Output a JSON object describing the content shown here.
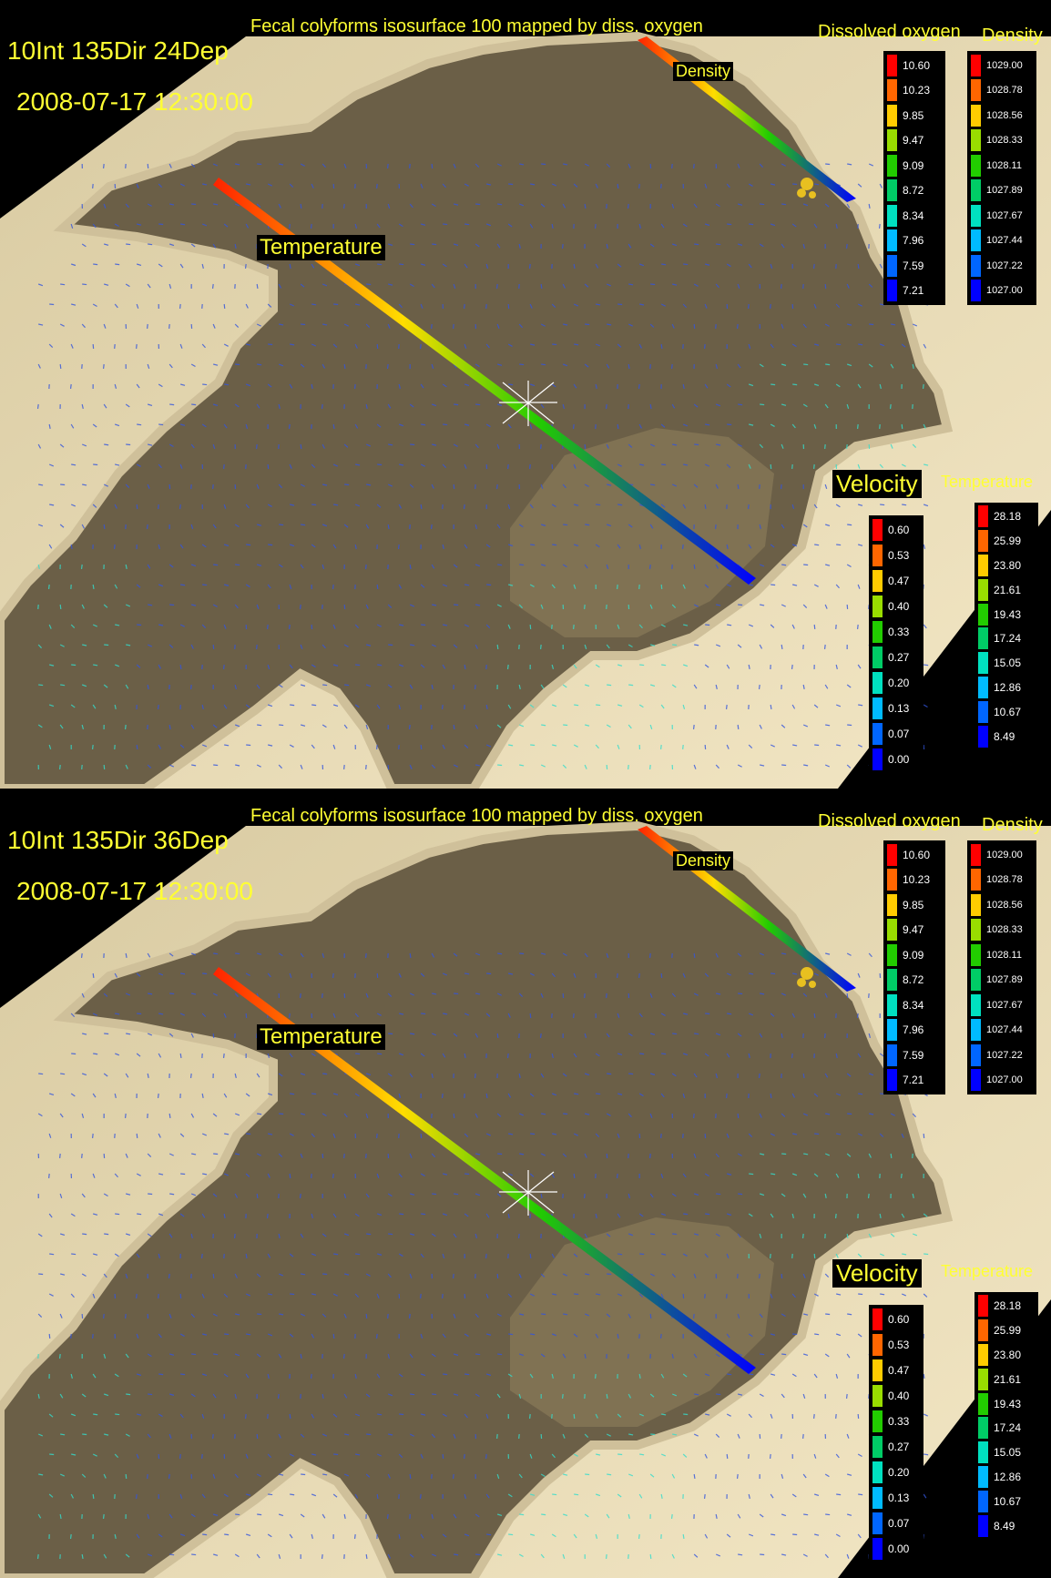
{
  "panels": [
    {
      "title": "Fecal colyforms isosurface 100 mapped by diss. oxygen",
      "run_label": "10Int 135Dir 24Dep",
      "timestamp": "2008-07-17 12:30:00",
      "labels": {
        "temperature": "Temperature",
        "density": "Density"
      },
      "legends": {
        "dissolved_oxygen": {
          "title": "Dissolved oxygen",
          "values": [
            "10.60",
            "10.23",
            "9.85",
            "9.47",
            "9.09",
            "8.72",
            "8.34",
            "7.96",
            "7.59",
            "7.21"
          ]
        },
        "density": {
          "title": "Density",
          "values": [
            "1029.00",
            "1028.78",
            "1028.56",
            "1028.33",
            "1028.11",
            "1027.89",
            "1027.67",
            "1027.44",
            "1027.22",
            "1027.00"
          ]
        },
        "velocity": {
          "title": "Velocity",
          "values": [
            "0.60",
            "0.53",
            "0.47",
            "0.40",
            "0.33",
            "0.27",
            "0.20",
            "0.13",
            "0.07",
            "0.00"
          ]
        },
        "temperature": {
          "title": "Temperature",
          "values": [
            "28.18",
            "25.99",
            "23.80",
            "21.61",
            "19.43",
            "17.24",
            "15.05",
            "12.86",
            "10.67",
            "8.49"
          ]
        }
      }
    },
    {
      "title": "Fecal colyforms isosurface 100 mapped by diss. oxygen",
      "run_label": "10Int 135Dir 36Dep",
      "timestamp": "2008-07-17 12:30:00",
      "labels": {
        "temperature": "Temperature",
        "density": "Density"
      },
      "legends": {
        "dissolved_oxygen": {
          "title": "Dissolved oxygen",
          "values": [
            "10.60",
            "10.23",
            "9.85",
            "9.47",
            "9.09",
            "8.72",
            "8.34",
            "7.96",
            "7.59",
            "7.21"
          ]
        },
        "density": {
          "title": "Density",
          "values": [
            "1029.00",
            "1028.78",
            "1028.56",
            "1028.33",
            "1028.11",
            "1027.89",
            "1027.67",
            "1027.44",
            "1027.22",
            "1027.00"
          ]
        },
        "velocity": {
          "title": "Velocity",
          "values": [
            "0.60",
            "0.53",
            "0.47",
            "0.40",
            "0.33",
            "0.27",
            "0.20",
            "0.13",
            "0.07",
            "0.00"
          ]
        },
        "temperature": {
          "title": "Temperature",
          "values": [
            "28.18",
            "25.99",
            "23.80",
            "21.61",
            "19.43",
            "17.24",
            "15.05",
            "12.86",
            "10.67",
            "8.49"
          ]
        }
      }
    }
  ],
  "colormap": [
    "#ff0000",
    "#ff6600",
    "#ffcc00",
    "#99dd00",
    "#22cc00",
    "#00cc66",
    "#00e0c0",
    "#00bbff",
    "#0066ff",
    "#0000ff"
  ],
  "scene_colors": {
    "background": "#000000",
    "ground": "#e8d9b0",
    "water": "#6b5f47",
    "shore": "#cfc09a"
  }
}
